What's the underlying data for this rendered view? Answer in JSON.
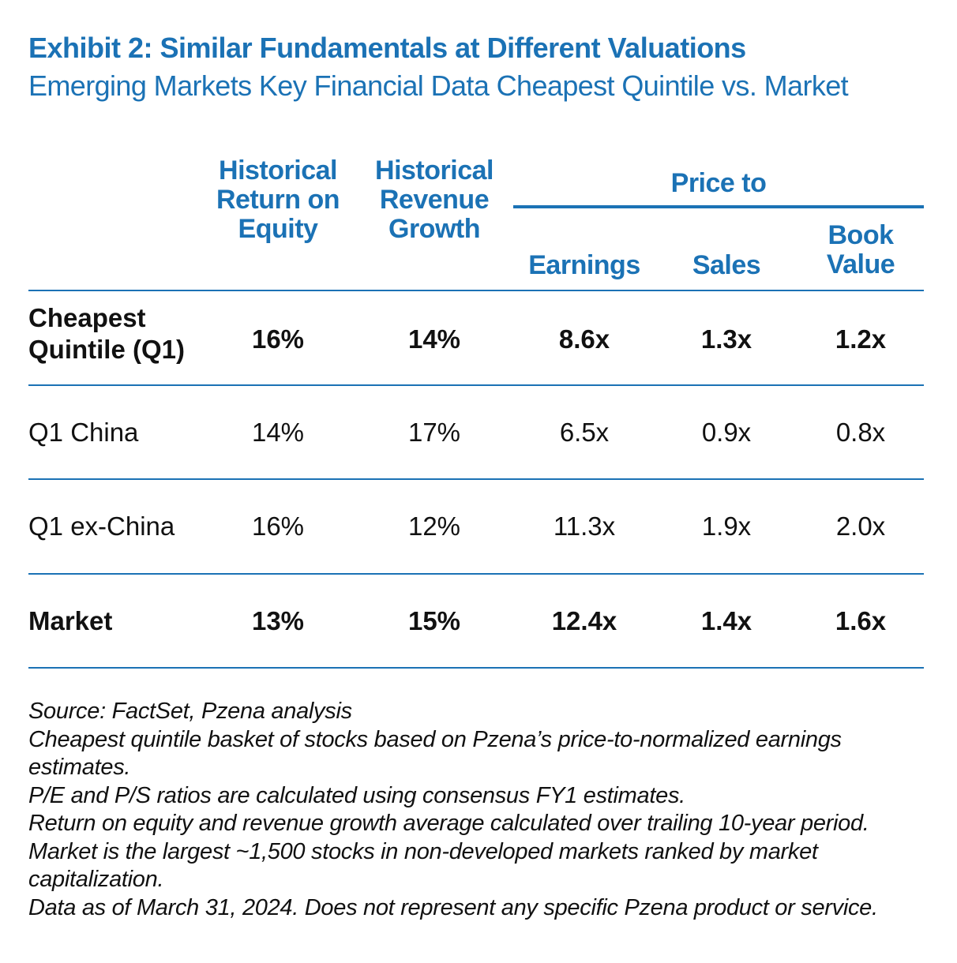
{
  "title": "Exhibit 2: Similar Fundamentals at Different Valuations",
  "subtitle": "Emerging Markets Key Financial Data Cheapest Quintile vs. Market",
  "chart_data": {
    "type": "table",
    "group_header": "Price to",
    "columns": [
      {
        "line1": "Historical",
        "line2": "Return on",
        "line3": "Equity"
      },
      {
        "line1": "Historical",
        "line2": "Revenue",
        "line3": "Growth"
      },
      {
        "line1": "Earnings"
      },
      {
        "line1": "Sales"
      },
      {
        "line1": "Book",
        "line2": "Value"
      }
    ],
    "rows": [
      {
        "label1": "Cheapest",
        "label2": "Quintile (Q1)",
        "bold": true,
        "values": [
          "16%",
          "14%",
          "8.6x",
          "1.3x",
          "1.2x"
        ]
      },
      {
        "label1": "Q1 China",
        "bold": false,
        "values": [
          "14%",
          "17%",
          "6.5x",
          "0.9x",
          "0.8x"
        ]
      },
      {
        "label1": "Q1 ex-China",
        "bold": false,
        "values": [
          "16%",
          "12%",
          "11.3x",
          "1.9x",
          "2.0x"
        ]
      },
      {
        "label1": "Market",
        "bold": true,
        "values": [
          "13%",
          "15%",
          "12.4x",
          "1.4x",
          "1.6x"
        ]
      }
    ]
  },
  "notes": [
    "Source: FactSet, Pzena analysis",
    "Cheapest quintile basket of stocks based on Pzena’s price-to-normalized earnings",
    "estimates.",
    "P/E and P/S ratios are calculated using consensus FY1 estimates.",
    "Return on equity and revenue growth average calculated over trailing 10-year period.",
    "Market is the largest ~1,500 stocks in non-developed markets ranked by market",
    "capitalization.",
    "Data as of March 31, 2024. Does not represent any specific Pzena product or service."
  ],
  "colors": {
    "accent": "#1b72b5",
    "text": "#111111"
  }
}
